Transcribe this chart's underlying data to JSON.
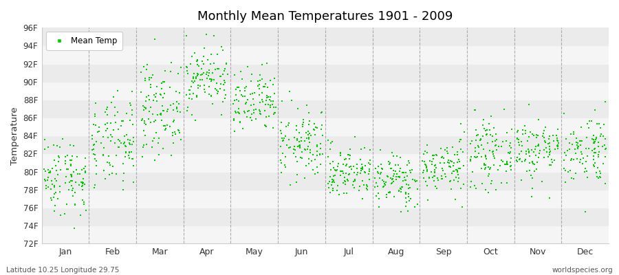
{
  "title": "Monthly Mean Temperatures 1901 - 2009",
  "ylabel": "Temperature",
  "xlabel_bottom_left": "Latitude 10.25 Longitude 29.75",
  "xlabel_bottom_right": "worldspecies.org",
  "legend_label": "Mean Temp",
  "marker_color": "#00cc00",
  "background_color": "#ffffff",
  "band_colors": [
    "#f5f5f5",
    "#ebebeb"
  ],
  "ylim": [
    72,
    96
  ],
  "ytick_step": 2,
  "months": [
    "Jan",
    "Feb",
    "Mar",
    "Apr",
    "May",
    "Jun",
    "Jul",
    "Aug",
    "Sep",
    "Oct",
    "Nov",
    "Dec"
  ],
  "num_years": 109,
  "seed": 42,
  "monthly_mean": [
    79.5,
    83.0,
    87.0,
    90.5,
    87.5,
    83.0,
    80.0,
    79.0,
    80.5,
    82.0,
    82.5,
    82.5
  ],
  "monthly_std": [
    2.2,
    2.5,
    2.5,
    1.8,
    1.8,
    2.0,
    1.5,
    1.5,
    1.5,
    1.8,
    1.8,
    2.0
  ]
}
